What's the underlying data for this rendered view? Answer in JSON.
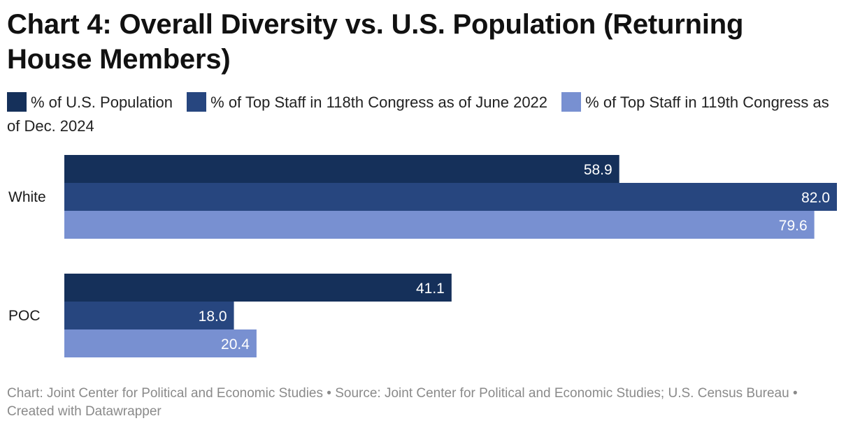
{
  "title": "Chart 4: Overall Diversity vs. U.S. Population (Returning House Members)",
  "footer": {
    "text": "Chart: Joint Center for Political and Economic Studies • Source: Joint Center for Political and Economic Studies; U.S. Census Bureau • Created with Datawrapper"
  },
  "colors": {
    "series_0": "#15305a",
    "series_1": "#27467f",
    "series_2": "#7890d1"
  },
  "chart_data": {
    "type": "bar",
    "orientation": "horizontal",
    "title": "Chart 4: Overall Diversity vs. U.S. Population (Returning House Members)",
    "categories": [
      "White",
      "POC"
    ],
    "series": [
      {
        "name": "% of U.S. Population",
        "values": [
          58.9,
          41.1
        ]
      },
      {
        "name": "% of Top Staff in 118th Congress as of June 2022",
        "values": [
          82.0,
          18.0
        ]
      },
      {
        "name": "% of Top Staff in 119th Congress as of Dec. 2024",
        "values": [
          79.6,
          20.4
        ]
      }
    ],
    "value_labels": [
      [
        "58.9",
        "41.1"
      ],
      [
        "82.0",
        "18.0"
      ],
      [
        "79.6",
        "20.4"
      ]
    ],
    "xlim": [
      0,
      82
    ],
    "grid": false,
    "legend_position": "top"
  }
}
